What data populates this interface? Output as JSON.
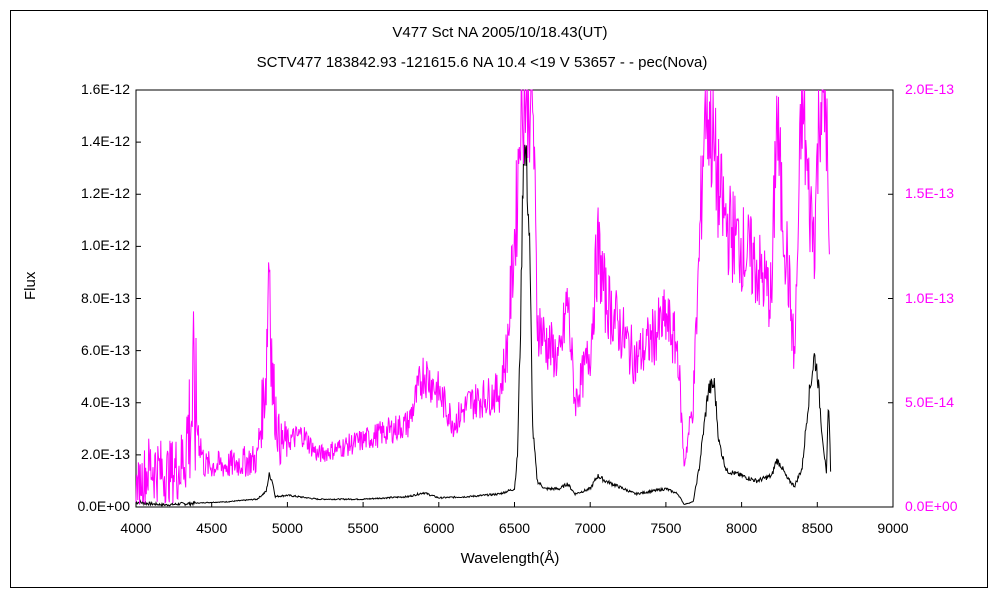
{
  "chart_data": {
    "type": "line",
    "title": "V477 Sct    NA    2005/10/18.43(UT)",
    "subtitle": "SCTV477 183842.93 -121615.6 NA 10.4 <19 V 53657 - - pec(Nova)",
    "xlabel": "Wavelength(Å)",
    "ylabel": "Flux",
    "xlim": [
      4000,
      9000
    ],
    "ylim": [
      0,
      1.6e-12
    ],
    "y2lim": [
      0,
      2e-13
    ],
    "x_ticks": [
      "4000",
      "4500",
      "5000",
      "5500",
      "6000",
      "6500",
      "7000",
      "7500",
      "8000",
      "8500",
      "9000"
    ],
    "y_ticks": [
      "0.0E+00",
      "2.0E-13",
      "4.0E-13",
      "6.0E-13",
      "8.0E-13",
      "1.0E-12",
      "1.2E-12",
      "1.4E-12",
      "1.6E-12"
    ],
    "y2_ticks": [
      "0.0E+00",
      "5.0E-14",
      "1.0E-13",
      "1.5E-13",
      "2.0E-13"
    ],
    "series": [
      {
        "axis": "left",
        "color": "#000000",
        "points": [
          [
            4000,
            2e-14
          ],
          [
            4100,
            1.2e-14
          ],
          [
            4200,
            8e-15
          ],
          [
            4300,
            1.2e-14
          ],
          [
            4400,
            1.5e-14
          ],
          [
            4500,
            1.8e-14
          ],
          [
            4600,
            2e-14
          ],
          [
            4700,
            2.5e-14
          ],
          [
            4800,
            3e-14
          ],
          [
            4860,
            6e-14
          ],
          [
            4880,
            1.25e-13
          ],
          [
            4900,
            1e-13
          ],
          [
            4920,
            4e-14
          ],
          [
            5000,
            4.5e-14
          ],
          [
            5200,
            3e-14
          ],
          [
            5500,
            3e-14
          ],
          [
            5800,
            4e-14
          ],
          [
            5900,
            5.5e-14
          ],
          [
            6000,
            3.5e-14
          ],
          [
            6200,
            4e-14
          ],
          [
            6400,
            5e-14
          ],
          [
            6500,
            7e-14
          ],
          [
            6520,
            2e-13
          ],
          [
            6540,
            7e-13
          ],
          [
            6560,
            1.42e-12
          ],
          [
            6580,
            1.3e-12
          ],
          [
            6600,
            1e-12
          ],
          [
            6620,
            3e-13
          ],
          [
            6650,
            1e-13
          ],
          [
            6700,
            7e-14
          ],
          [
            6800,
            7e-14
          ],
          [
            6850,
            9e-14
          ],
          [
            6900,
            5e-14
          ],
          [
            7000,
            7e-14
          ],
          [
            7050,
            1.2e-13
          ],
          [
            7100,
            1e-13
          ],
          [
            7300,
            5e-14
          ],
          [
            7500,
            7e-14
          ],
          [
            7580,
            5e-14
          ],
          [
            7620,
            1e-14
          ],
          [
            7680,
            2e-14
          ],
          [
            7720,
            1.5e-13
          ],
          [
            7780,
            4.5e-13
          ],
          [
            7820,
            4.7e-13
          ],
          [
            7850,
            2.5e-13
          ],
          [
            7900,
            1.4e-13
          ],
          [
            8000,
            1.2e-13
          ],
          [
            8100,
            1e-13
          ],
          [
            8200,
            1.2e-13
          ],
          [
            8230,
            1.8e-13
          ],
          [
            8260,
            1.6e-13
          ],
          [
            8300,
            1.1e-13
          ],
          [
            8350,
            8e-14
          ],
          [
            8400,
            1.5e-13
          ],
          [
            8440,
            4e-13
          ],
          [
            8480,
            5.8e-13
          ],
          [
            8500,
            5.2e-13
          ],
          [
            8530,
            3e-13
          ],
          [
            8560,
            1.2e-13
          ],
          [
            8575,
            4.2e-13
          ],
          [
            8590,
            1e-13
          ]
        ]
      },
      {
        "axis": "right",
        "color": "#ff00ff",
        "points": [
          [
            4000,
            1e-14
          ],
          [
            4100,
            2e-14
          ],
          [
            4200,
            1.6e-14
          ],
          [
            4300,
            2e-14
          ],
          [
            4380,
            5e-14
          ],
          [
            4450,
            2e-14
          ],
          [
            4600,
            2e-14
          ],
          [
            4800,
            2.3e-14
          ],
          [
            4860,
            6.5e-14
          ],
          [
            4880,
            1.3e-13
          ],
          [
            4900,
            6e-14
          ],
          [
            4950,
            3e-14
          ],
          [
            5100,
            3.5e-14
          ],
          [
            5200,
            2.5e-14
          ],
          [
            5500,
            3.2e-14
          ],
          [
            5800,
            4e-14
          ],
          [
            5900,
            6.5e-14
          ],
          [
            6000,
            5.5e-14
          ],
          [
            6100,
            4e-14
          ],
          [
            6200,
            5e-14
          ],
          [
            6400,
            5.5e-14
          ],
          [
            6450,
            7.5e-14
          ],
          [
            6520,
            1.5e-13
          ],
          [
            6540,
            2e-13
          ],
          [
            6620,
            2e-13
          ],
          [
            6650,
            9e-14
          ],
          [
            6700,
            8e-14
          ],
          [
            6800,
            7e-14
          ],
          [
            6850,
            1e-13
          ],
          [
            6900,
            5e-14
          ],
          [
            7000,
            7.5e-14
          ],
          [
            7050,
            1.25e-13
          ],
          [
            7100,
            1e-13
          ],
          [
            7300,
            7e-14
          ],
          [
            7500,
            9e-14
          ],
          [
            7580,
            7.5e-14
          ],
          [
            7620,
            2e-14
          ],
          [
            7680,
            5e-14
          ],
          [
            7720,
            1.2e-13
          ],
          [
            7760,
            2e-13
          ],
          [
            7800,
            1.8e-13
          ],
          [
            7850,
            1.5e-13
          ],
          [
            7900,
            1.35e-13
          ],
          [
            8000,
            1.25e-13
          ],
          [
            8100,
            1.15e-13
          ],
          [
            8200,
            1e-13
          ],
          [
            8230,
            1.9e-13
          ],
          [
            8260,
            1.5e-13
          ],
          [
            8300,
            1.2e-13
          ],
          [
            8350,
            7e-14
          ],
          [
            8400,
            2e-13
          ],
          [
            8440,
            1.5e-13
          ],
          [
            8480,
            1.3e-13
          ],
          [
            8520,
            2e-13
          ],
          [
            8560,
            1.9e-13
          ],
          [
            8580,
            1.05e-13
          ]
        ]
      }
    ],
    "grid": false
  }
}
